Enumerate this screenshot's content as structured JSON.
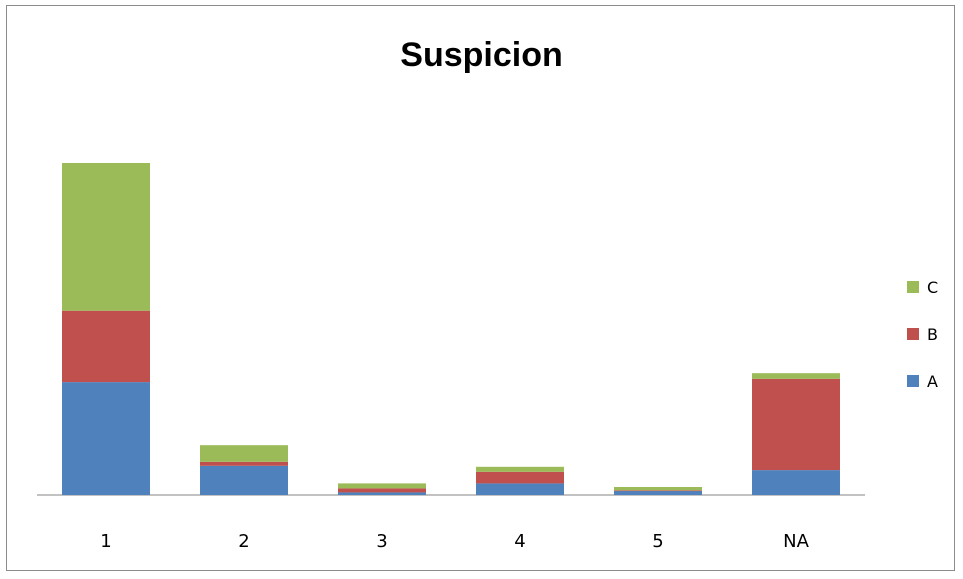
{
  "chart_data": {
    "type": "bar",
    "stacked": true,
    "title": "Suspicion",
    "categories": [
      "1",
      "2",
      "3",
      "4",
      "5",
      "NA"
    ],
    "series": [
      {
        "name": "A",
        "color": "#4f81bd",
        "values": [
          34,
          8.8,
          0.8,
          3.5,
          1.2,
          7.5
        ]
      },
      {
        "name": "B",
        "color": "#c0504d",
        "values": [
          21.5,
          1.2,
          1.2,
          3.5,
          0.2,
          27.5
        ]
      },
      {
        "name": "C",
        "color": "#9bbb59",
        "values": [
          44.5,
          5,
          1.5,
          1.5,
          1.0,
          1.7
        ]
      }
    ],
    "ylim": [
      0,
      100
    ],
    "grid": false,
    "y_axis_visible": false,
    "legend_position": "right",
    "legend_order": [
      "C",
      "B",
      "A"
    ]
  }
}
